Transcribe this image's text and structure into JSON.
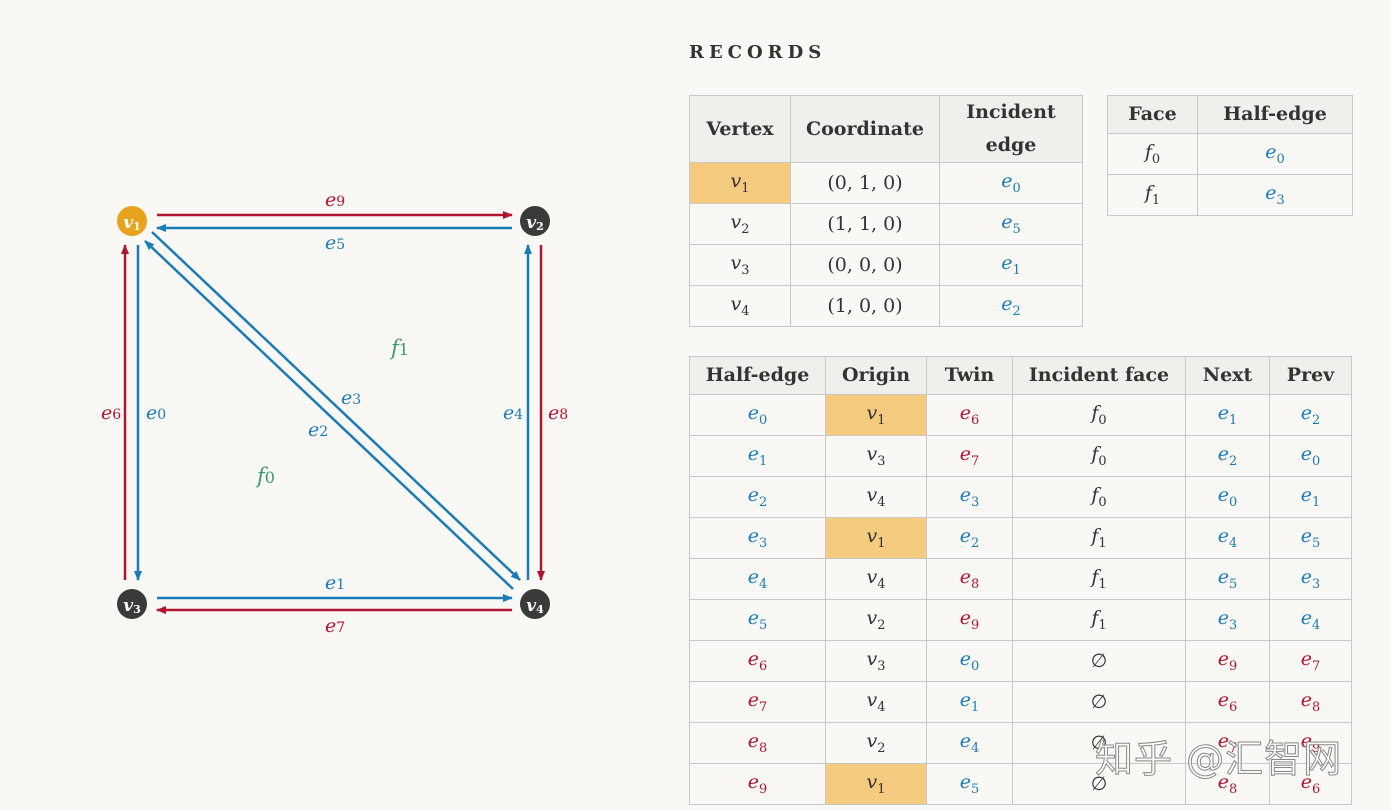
{
  "graph": {
    "vertices": [
      {
        "id": "v1",
        "label": "v",
        "sub": "1",
        "color": "#e8a21c"
      },
      {
        "id": "v2",
        "label": "v",
        "sub": "2",
        "color": "#3a3a3a"
      },
      {
        "id": "v3",
        "label": "v",
        "sub": "3",
        "color": "#3a3a3a"
      },
      {
        "id": "v4",
        "label": "v",
        "sub": "4",
        "color": "#3a3a3a"
      }
    ],
    "edge_labels": {
      "e9": "e9",
      "e5": "e5",
      "e1": "e1",
      "e7": "e7",
      "e6": "e6",
      "e0": "e0",
      "e4": "e4",
      "e8": "e8",
      "e3": "e3",
      "e2": "e2"
    },
    "face_labels": {
      "f1": "f1",
      "f0": "f0"
    },
    "colors": {
      "blue": "#1b7bb7",
      "red": "#b0142f",
      "green": "#3a9a6a"
    }
  },
  "records_title": "RECORDS",
  "vertex_table": {
    "headers": [
      "Vertex",
      "Coordinate",
      "Incident edge"
    ],
    "rows": [
      {
        "vertex": "1",
        "coordinate": "(0, 1, 0)",
        "edge": "0",
        "highlight": true
      },
      {
        "vertex": "2",
        "coordinate": "(1, 1, 0)",
        "edge": "5",
        "highlight": false
      },
      {
        "vertex": "3",
        "coordinate": "(0, 0, 0)",
        "edge": "1",
        "highlight": false
      },
      {
        "vertex": "4",
        "coordinate": "(1, 0, 0)",
        "edge": "2",
        "highlight": false
      }
    ]
  },
  "face_table": {
    "headers": [
      "Face",
      "Half-edge"
    ],
    "rows": [
      {
        "face": "0",
        "edge": "0"
      },
      {
        "face": "1",
        "edge": "3"
      }
    ]
  },
  "halfedge_table": {
    "headers": [
      "Half-edge",
      "Origin",
      "Twin",
      "Incident face",
      "Next",
      "Prev"
    ],
    "rows": [
      {
        "he": "0",
        "origin": "1",
        "twin": "6",
        "face": "f0",
        "next": "1",
        "prev": "2",
        "origin_hl": true
      },
      {
        "he": "1",
        "origin": "3",
        "twin": "7",
        "face": "f0",
        "next": "2",
        "prev": "0",
        "origin_hl": false
      },
      {
        "he": "2",
        "origin": "4",
        "twin": "3",
        "face": "f0",
        "next": "0",
        "prev": "1",
        "origin_hl": false
      },
      {
        "he": "3",
        "origin": "1",
        "twin": "2",
        "face": "f1",
        "next": "4",
        "prev": "5",
        "origin_hl": true
      },
      {
        "he": "4",
        "origin": "4",
        "twin": "8",
        "face": "f1",
        "next": "5",
        "prev": "3",
        "origin_hl": false
      },
      {
        "he": "5",
        "origin": "2",
        "twin": "9",
        "face": "f1",
        "next": "3",
        "prev": "4",
        "origin_hl": false
      },
      {
        "he": "6",
        "origin": "3",
        "twin": "0",
        "face": "∅",
        "next": "9",
        "prev": "7",
        "origin_hl": false
      },
      {
        "he": "7",
        "origin": "4",
        "twin": "1",
        "face": "∅",
        "next": "6",
        "prev": "8",
        "origin_hl": false
      },
      {
        "he": "8",
        "origin": "2",
        "twin": "4",
        "face": "∅",
        "next": "7",
        "prev": "9",
        "origin_hl": false
      },
      {
        "he": "9",
        "origin": "1",
        "twin": "5",
        "face": "∅",
        "next": "8",
        "prev": "6",
        "origin_hl": true
      }
    ]
  },
  "watermark": "知乎 @汇智网"
}
